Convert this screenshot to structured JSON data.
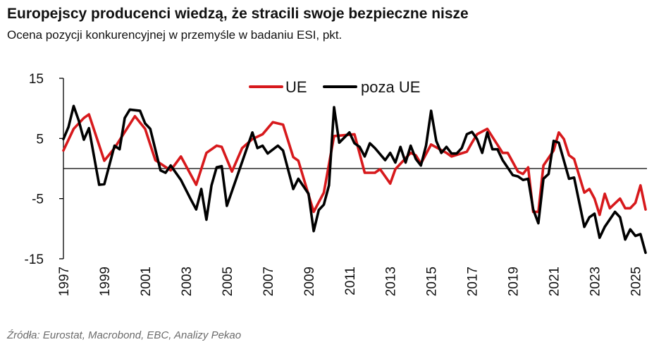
{
  "title": "Europejscy producenci wiedzą, że stracili swoje bezpieczne nisze",
  "subtitle": "Ocena pozycji konkurencyjnej w przemyśle w badaniu ESI, pkt.",
  "source": "Źródła: Eurostat, Macrobond, EBC, Analizy Pekao",
  "chart_data": {
    "type": "line",
    "title": "Europejscy producenci wiedzą, że stracili swoje bezpieczne nisze",
    "ylabel": "",
    "xlabel": "",
    "ylim": [
      -15,
      15
    ],
    "yticks": [
      "15",
      "5",
      "-5",
      "-15"
    ],
    "xlim": [
      "1997Q1",
      "2025Q3"
    ],
    "xticks": [
      "1997",
      "1999",
      "2001",
      "2003",
      "2005",
      "2007",
      "2009",
      "2011",
      "2013",
      "2015",
      "2017",
      "2019",
      "2021",
      "2023",
      "2025"
    ],
    "zero_line": true,
    "grid": false,
    "legend": "top",
    "series": [
      {
        "name": "UE",
        "color": "#d7191c",
        "points": [
          [
            "1997Q1",
            3.0
          ],
          [
            "1997Q3",
            6.6
          ],
          [
            "1998Q1",
            8.4
          ],
          [
            "1998Q2",
            9.0
          ],
          [
            "1999Q1",
            1.3
          ],
          [
            "1999Q3",
            3.4
          ],
          [
            "2000Q3",
            8.7
          ],
          [
            "2001Q1",
            6.6
          ],
          [
            "2001Q3",
            1.4
          ],
          [
            "2002Q2",
            -0.3
          ],
          [
            "2002Q4",
            2.0
          ],
          [
            "2003Q3",
            -2.7
          ],
          [
            "2004Q1",
            2.6
          ],
          [
            "2004Q3",
            3.8
          ],
          [
            "2004Q4",
            3.6
          ],
          [
            "2005Q2",
            -0.5
          ],
          [
            "2005Q4",
            3.4
          ],
          [
            "2006Q2",
            4.9
          ],
          [
            "2006Q4",
            5.7
          ],
          [
            "2007Q2",
            7.7
          ],
          [
            "2007Q4",
            7.3
          ],
          [
            "2008Q2",
            1.9
          ],
          [
            "2008Q3",
            1.3
          ],
          [
            "2009Q2",
            -7.2
          ],
          [
            "2009Q4",
            -4.0
          ],
          [
            "2010Q2",
            5.4
          ],
          [
            "2011Q2",
            5.7
          ],
          [
            "2011Q4",
            -0.7
          ],
          [
            "2012Q2",
            -0.7
          ],
          [
            "2012Q3",
            -0.1
          ],
          [
            "2013Q1",
            -2.5
          ],
          [
            "2013Q2",
            -0.1
          ],
          [
            "2014Q1",
            2.6
          ],
          [
            "2014Q2",
            2.2
          ],
          [
            "2014Q3",
            0.8
          ],
          [
            "2015Q1",
            4.0
          ],
          [
            "2015Q4",
            2.6
          ],
          [
            "2016Q1",
            2.0
          ],
          [
            "2016Q4",
            2.8
          ],
          [
            "2017Q1",
            4.3
          ],
          [
            "2017Q2",
            5.7
          ],
          [
            "2017Q4",
            6.6
          ],
          [
            "2018Q3",
            2.6
          ],
          [
            "2018Q4",
            2.6
          ],
          [
            "2019Q2",
            -0.5
          ],
          [
            "2019Q3",
            -0.9
          ],
          [
            "2019Q4",
            0.2
          ],
          [
            "2020Q1",
            -7.2
          ],
          [
            "2020Q2",
            -7.2
          ],
          [
            "2020Q3",
            0.5
          ],
          [
            "2021Q1",
            3.0
          ],
          [
            "2021Q2",
            6.0
          ],
          [
            "2021Q3",
            4.9
          ],
          [
            "2021Q4",
            2.2
          ],
          [
            "2022Q1",
            1.6
          ],
          [
            "2022Q3",
            -4.0
          ],
          [
            "2022Q4",
            -3.4
          ],
          [
            "2023Q1",
            -5.0
          ],
          [
            "2023Q2",
            -7.7
          ],
          [
            "2023Q3",
            -4.2
          ],
          [
            "2023Q4",
            -6.6
          ],
          [
            "2024Q2",
            -5.0
          ],
          [
            "2024Q3",
            -6.6
          ],
          [
            "2024Q4",
            -6.6
          ],
          [
            "2025Q1",
            -5.7
          ],
          [
            "2025Q2",
            -2.8
          ],
          [
            "2025Q3",
            -6.8
          ]
        ]
      },
      {
        "name": "poza UE",
        "color": "#000000",
        "points": [
          [
            "1997Q1",
            4.9
          ],
          [
            "1997Q2",
            6.9
          ],
          [
            "1997Q3",
            10.4
          ],
          [
            "1997Q4",
            8.0
          ],
          [
            "1998Q1",
            4.8
          ],
          [
            "1998Q2",
            6.7
          ],
          [
            "1998Q4",
            -2.7
          ],
          [
            "1999Q1",
            -2.6
          ],
          [
            "1999Q3",
            3.8
          ],
          [
            "1999Q4",
            3.2
          ],
          [
            "2000Q1",
            8.4
          ],
          [
            "2000Q2",
            9.8
          ],
          [
            "2000Q4",
            9.6
          ],
          [
            "2001Q1",
            7.5
          ],
          [
            "2001Q2",
            6.6
          ],
          [
            "2001Q4",
            -0.3
          ],
          [
            "2002Q1",
            -0.7
          ],
          [
            "2002Q2",
            0.5
          ],
          [
            "2002Q4",
            -1.9
          ],
          [
            "2003Q2",
            -5.2
          ],
          [
            "2003Q3",
            -6.8
          ],
          [
            "2003Q4",
            -3.4
          ],
          [
            "2004Q1",
            -8.5
          ],
          [
            "2004Q2",
            -2.8
          ],
          [
            "2004Q3",
            0.2
          ],
          [
            "2004Q4",
            0.4
          ],
          [
            "2005Q1",
            -6.2
          ],
          [
            "2006Q2",
            6.0
          ],
          [
            "2006Q3",
            3.4
          ],
          [
            "2006Q4",
            3.8
          ],
          [
            "2007Q1",
            2.5
          ],
          [
            "2007Q3",
            3.8
          ],
          [
            "2007Q4",
            3.0
          ],
          [
            "2008Q2",
            -3.4
          ],
          [
            "2008Q3",
            -1.7
          ],
          [
            "2009Q1",
            -4.2
          ],
          [
            "2009Q2",
            -10.4
          ],
          [
            "2009Q3",
            -6.9
          ],
          [
            "2009Q4",
            -6.0
          ],
          [
            "2010Q1",
            -2.8
          ],
          [
            "2010Q2",
            10.2
          ],
          [
            "2010Q3",
            4.3
          ],
          [
            "2011Q1",
            6.0
          ],
          [
            "2011Q2",
            4.2
          ],
          [
            "2011Q3",
            3.6
          ],
          [
            "2011Q4",
            2.0
          ],
          [
            "2012Q1",
            4.2
          ],
          [
            "2012Q2",
            3.4
          ],
          [
            "2012Q4",
            1.4
          ],
          [
            "2013Q1",
            2.6
          ],
          [
            "2013Q2",
            1.0
          ],
          [
            "2013Q3",
            3.6
          ],
          [
            "2013Q4",
            1.0
          ],
          [
            "2014Q1",
            3.8
          ],
          [
            "2014Q2",
            1.6
          ],
          [
            "2014Q3",
            0.5
          ],
          [
            "2014Q4",
            3.8
          ],
          [
            "2015Q1",
            9.6
          ],
          [
            "2015Q2",
            4.6
          ],
          [
            "2015Q3",
            2.6
          ],
          [
            "2015Q4",
            3.6
          ],
          [
            "2016Q1",
            2.5
          ],
          [
            "2016Q2",
            2.5
          ],
          [
            "2016Q3",
            3.4
          ],
          [
            "2016Q4",
            5.7
          ],
          [
            "2017Q1",
            6.1
          ],
          [
            "2017Q2",
            4.9
          ],
          [
            "2017Q3",
            2.6
          ],
          [
            "2017Q4",
            6.0
          ],
          [
            "2018Q1",
            3.2
          ],
          [
            "2018Q2",
            3.2
          ],
          [
            "2018Q3",
            1.4
          ],
          [
            "2019Q1",
            -1.1
          ],
          [
            "2019Q2",
            -1.3
          ],
          [
            "2019Q3",
            -1.9
          ],
          [
            "2019Q4",
            -1.7
          ],
          [
            "2020Q1",
            -6.8
          ],
          [
            "2020Q2",
            -9.1
          ],
          [
            "2020Q3",
            -1.7
          ],
          [
            "2020Q4",
            -0.9
          ],
          [
            "2021Q1",
            4.6
          ],
          [
            "2021Q2",
            4.3
          ],
          [
            "2021Q4",
            -1.7
          ],
          [
            "2022Q1",
            -1.5
          ],
          [
            "2022Q3",
            -9.7
          ],
          [
            "2022Q4",
            -8.1
          ],
          [
            "2023Q1",
            -7.5
          ],
          [
            "2023Q2",
            -11.5
          ],
          [
            "2023Q3",
            -9.7
          ],
          [
            "2024Q1",
            -7.2
          ],
          [
            "2024Q2",
            -8.1
          ],
          [
            "2024Q3",
            -11.8
          ],
          [
            "2024Q4",
            -10.1
          ],
          [
            "2025Q1",
            -11.2
          ],
          [
            "2025Q2",
            -10.9
          ],
          [
            "2025Q3",
            -14.0
          ]
        ]
      }
    ]
  }
}
